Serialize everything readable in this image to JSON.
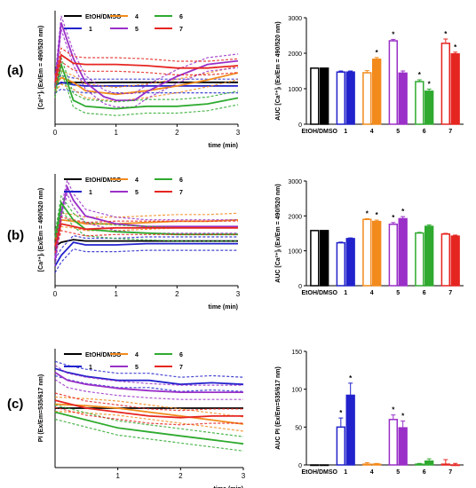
{
  "panel_labels": [
    "(a)",
    "(b)",
    "(c)"
  ],
  "colors": {
    "EtOH/DMSO": "#000000",
    "1": "#2222cc",
    "4": "#f28a1c",
    "5": "#9a30c8",
    "6": "#2faa2f",
    "7": "#e52520"
  },
  "legend": [
    {
      "label": "EtOH/DMSO",
      "key": "EtOH/DMSO"
    },
    {
      "label": "4",
      "key": "4"
    },
    {
      "label": "6",
      "key": "6"
    },
    {
      "label": "1",
      "key": "1"
    },
    {
      "label": "5",
      "key": "5"
    },
    {
      "label": "7",
      "key": "7"
    }
  ],
  "chart_data": [
    {
      "panel": "(a)",
      "type": "line",
      "xlabel": "time (min)",
      "ylabel": "[Ca²⁺]ᵢ (Ex/Em = 490/520 nm)",
      "xlim": [
        0,
        3
      ],
      "x_ticks": [
        "0",
        "1",
        "2",
        "3"
      ],
      "y_ticks": [],
      "series": [
        {
          "name": "EtOH/DMSO",
          "x": [
            0,
            0.1,
            0.3,
            0.5,
            1,
            1.5,
            2,
            2.5,
            3
          ],
          "y": [
            490,
            495,
            500,
            498,
            500,
            500,
            500,
            500,
            500
          ]
        },
        {
          "name": "1",
          "x": [
            0,
            0.1,
            0.3,
            0.5,
            1,
            1.5,
            2,
            2.5,
            3
          ],
          "y": [
            470,
            500,
            480,
            470,
            470,
            470,
            470,
            470,
            470
          ]
        },
        {
          "name": "4",
          "x": [
            0,
            0.1,
            0.3,
            0.5,
            1,
            1.5,
            2,
            2.5,
            3
          ],
          "y": [
            480,
            540,
            500,
            430,
            400,
            430,
            470,
            520,
            580
          ]
        },
        {
          "name": "5",
          "x": [
            0,
            0.1,
            0.3,
            0.5,
            0.8,
            1,
            1.3,
            1.5,
            2,
            2.5,
            3
          ],
          "y": [
            480,
            1000,
            700,
            500,
            380,
            350,
            350,
            420,
            550,
            650,
            680
          ]
        },
        {
          "name": "6",
          "x": [
            0,
            0.1,
            0.3,
            0.5,
            1,
            1.5,
            2,
            2.5,
            3
          ],
          "y": [
            430,
            650,
            350,
            300,
            280,
            300,
            300,
            320,
            370
          ]
        },
        {
          "name": "7",
          "x": [
            0,
            0.1,
            0.3,
            0.5,
            1,
            1.5,
            2,
            2.5,
            3
          ],
          "y": [
            500,
            730,
            660,
            650,
            650,
            640,
            620,
            620,
            640
          ]
        }
      ]
    },
    {
      "panel": "(a)",
      "type": "bar",
      "xlabel": "",
      "ylabel": "AUC [Ca²⁺]ᵢ (Ex/Em = 490/520 nm)",
      "ylim": [
        0,
        3000
      ],
      "y_ticks": [
        "0",
        "1000",
        "2000",
        "3000"
      ],
      "categories": [
        "EtOH/DMSO",
        "1",
        "4",
        "5",
        "6",
        "7"
      ],
      "bars": [
        {
          "group": "EtOH/DMSO",
          "series": "EtOH",
          "value": 1580,
          "err": 0,
          "fill": false,
          "sig": false
        },
        {
          "group": "EtOH/DMSO",
          "series": "DMSO",
          "value": 1580,
          "err": 0,
          "fill": true,
          "sig": false
        },
        {
          "group": "1",
          "series": "EtOH",
          "value": 1470,
          "err": 30,
          "fill": false,
          "sig": false
        },
        {
          "group": "1",
          "series": "DMSO",
          "value": 1470,
          "err": 30,
          "fill": true,
          "sig": false
        },
        {
          "group": "4",
          "series": "EtOH",
          "value": 1450,
          "err": 60,
          "fill": false,
          "sig": false
        },
        {
          "group": "4",
          "series": "DMSO",
          "value": 1830,
          "err": 50,
          "fill": true,
          "sig": true
        },
        {
          "group": "5",
          "series": "EtOH",
          "value": 2350,
          "err": 40,
          "fill": false,
          "sig": true
        },
        {
          "group": "5",
          "series": "DMSO",
          "value": 1440,
          "err": 60,
          "fill": true,
          "sig": false
        },
        {
          "group": "6",
          "series": "EtOH",
          "value": 1200,
          "err": 50,
          "fill": false,
          "sig": true
        },
        {
          "group": "6",
          "series": "DMSO",
          "value": 930,
          "err": 60,
          "fill": true,
          "sig": true
        },
        {
          "group": "7",
          "series": "EtOH",
          "value": 2280,
          "err": 120,
          "fill": false,
          "sig": true
        },
        {
          "group": "7",
          "series": "DMSO",
          "value": 1980,
          "err": 50,
          "fill": true,
          "sig": true
        }
      ]
    },
    {
      "panel": "(b)",
      "type": "line",
      "xlabel": "time (min)",
      "ylabel": "[Ca²⁺]ᵢ (Ex/Em = 490/520 nm)",
      "xlim": [
        0,
        3
      ],
      "x_ticks": [
        "0",
        "1",
        "2",
        "3"
      ],
      "y_ticks": [],
      "series": [
        {
          "name": "EtOH/DMSO",
          "x": [
            0,
            0.1,
            0.3,
            0.5,
            1,
            1.5,
            2,
            2.5,
            3
          ],
          "y": [
            450,
            480,
            500,
            490,
            490,
            490,
            490,
            490,
            490
          ]
        },
        {
          "name": "1",
          "x": [
            0,
            0.1,
            0.3,
            0.5,
            1,
            1.5,
            2,
            2.5,
            3
          ],
          "y": [
            300,
            380,
            480,
            460,
            460,
            470,
            470,
            470,
            470
          ]
        },
        {
          "name": "4",
          "x": [
            0,
            0.1,
            0.3,
            0.5,
            1,
            1.5,
            2,
            2.5,
            3
          ],
          "y": [
            450,
            650,
            640,
            620,
            620,
            630,
            640,
            640,
            650
          ]
        },
        {
          "name": "5",
          "x": [
            0,
            0.1,
            0.2,
            0.3,
            0.5,
            1,
            1.5,
            2,
            2.5,
            3
          ],
          "y": [
            350,
            700,
            900,
            800,
            680,
            620,
            600,
            600,
            600,
            600
          ]
        },
        {
          "name": "6",
          "x": [
            0,
            0.1,
            0.3,
            0.5,
            1,
            1.5,
            2,
            2.5,
            3
          ],
          "y": [
            500,
            780,
            650,
            580,
            560,
            550,
            540,
            540,
            540
          ]
        },
        {
          "name": "7",
          "x": [
            0,
            0.1,
            0.3,
            0.5,
            1,
            1.5,
            2,
            2.5,
            3
          ],
          "y": [
            450,
            620,
            600,
            580,
            590,
            590,
            590,
            590,
            590
          ]
        }
      ]
    },
    {
      "panel": "(b)",
      "type": "bar",
      "xlabel": "",
      "ylabel": "AUC [Ca²⁺]ᵢ (Ex/Em = 490/520 nm)",
      "ylim": [
        0,
        3000
      ],
      "y_ticks": [
        "0",
        "1000",
        "2000",
        "3000"
      ],
      "categories": [
        "EtOH/DMSO",
        "1",
        "4",
        "5",
        "6",
        "7"
      ],
      "bars": [
        {
          "group": "EtOH/DMSO",
          "series": "EtOH",
          "value": 1580,
          "err": 0,
          "fill": false,
          "sig": false
        },
        {
          "group": "EtOH/DMSO",
          "series": "DMSO",
          "value": 1580,
          "err": 0,
          "fill": true,
          "sig": false
        },
        {
          "group": "1",
          "series": "EtOH",
          "value": 1230,
          "err": 20,
          "fill": false,
          "sig": false
        },
        {
          "group": "1",
          "series": "DMSO",
          "value": 1350,
          "err": 20,
          "fill": true,
          "sig": false
        },
        {
          "group": "4",
          "series": "EtOH",
          "value": 1900,
          "err": 20,
          "fill": false,
          "sig": true
        },
        {
          "group": "4",
          "series": "DMSO",
          "value": 1840,
          "err": 40,
          "fill": true,
          "sig": true
        },
        {
          "group": "5",
          "series": "EtOH",
          "value": 1760,
          "err": 50,
          "fill": false,
          "sig": true
        },
        {
          "group": "5",
          "series": "DMSO",
          "value": 1920,
          "err": 60,
          "fill": true,
          "sig": true
        },
        {
          "group": "6",
          "series": "EtOH",
          "value": 1510,
          "err": 20,
          "fill": false,
          "sig": false
        },
        {
          "group": "6",
          "series": "DMSO",
          "value": 1700,
          "err": 40,
          "fill": true,
          "sig": false
        },
        {
          "group": "7",
          "series": "EtOH",
          "value": 1480,
          "err": 20,
          "fill": false,
          "sig": false
        },
        {
          "group": "7",
          "series": "DMSO",
          "value": 1420,
          "err": 30,
          "fill": true,
          "sig": false
        }
      ]
    },
    {
      "panel": "(c)",
      "type": "line",
      "xlabel": "time (min)",
      "ylabel": "PI (Ex/Em=535/617 nm)",
      "xlim": [
        0,
        3
      ],
      "x_ticks": [
        "1",
        "2",
        "3"
      ],
      "y_ticks": [],
      "series": [
        {
          "name": "EtOH/DMSO",
          "x": [
            0,
            0.5,
            1,
            1.5,
            2,
            2.5,
            3
          ],
          "y": [
            0,
            0,
            0,
            0,
            0,
            0,
            0
          ]
        },
        {
          "name": "1",
          "x": [
            0,
            0.2,
            0.5,
            1,
            1.5,
            2,
            2.5,
            3
          ],
          "y": [
            50,
            45,
            40,
            35,
            35,
            30,
            32,
            30
          ]
        },
        {
          "name": "4",
          "x": [
            0,
            0.5,
            1,
            1.5,
            2,
            2.5,
            3
          ],
          "y": [
            5,
            3,
            0,
            -5,
            -10,
            -15,
            -20
          ]
        },
        {
          "name": "5",
          "x": [
            0,
            0.2,
            0.5,
            1,
            1.5,
            2,
            2.5,
            3
          ],
          "y": [
            45,
            35,
            30,
            25,
            22,
            20,
            20,
            20
          ]
        },
        {
          "name": "6",
          "x": [
            0,
            0.5,
            1,
            1.5,
            2,
            2.5,
            3
          ],
          "y": [
            -5,
            -15,
            -25,
            -30,
            -35,
            -40,
            -45
          ]
        },
        {
          "name": "7",
          "x": [
            0,
            0.5,
            1,
            1.5,
            2,
            2.5,
            3
          ],
          "y": [
            10,
            0,
            -5,
            -10,
            -12,
            -10,
            -10
          ]
        }
      ]
    },
    {
      "panel": "(c)",
      "type": "bar",
      "xlabel": "",
      "ylabel": "AUC PI (Ex/Em=535/617 nm)",
      "ylim": [
        0,
        150
      ],
      "y_ticks": [
        "0",
        "50",
        "100",
        "150"
      ],
      "categories": [
        "EtOH/DMSO",
        "1",
        "4",
        "5",
        "6",
        "7"
      ],
      "bars": [
        {
          "group": "EtOH/DMSO",
          "series": "EtOH",
          "value": 0,
          "err": 0,
          "fill": false,
          "sig": false
        },
        {
          "group": "EtOH/DMSO",
          "series": "DMSO",
          "value": 0,
          "err": 0,
          "fill": true,
          "sig": false
        },
        {
          "group": "1",
          "series": "EtOH",
          "value": 50,
          "err": 12,
          "fill": false,
          "sig": true
        },
        {
          "group": "1",
          "series": "DMSO",
          "value": 92,
          "err": 16,
          "fill": true,
          "sig": true
        },
        {
          "group": "4",
          "series": "EtOH",
          "value": 1,
          "err": 2,
          "fill": false,
          "sig": false
        },
        {
          "group": "4",
          "series": "DMSO",
          "value": 1,
          "err": 1,
          "fill": true,
          "sig": false
        },
        {
          "group": "5",
          "series": "EtOH",
          "value": 60,
          "err": 6,
          "fill": false,
          "sig": true
        },
        {
          "group": "5",
          "series": "DMSO",
          "value": 49,
          "err": 9,
          "fill": true,
          "sig": true
        },
        {
          "group": "6",
          "series": "EtOH",
          "value": 1,
          "err": 1,
          "fill": false,
          "sig": false
        },
        {
          "group": "6",
          "series": "DMSO",
          "value": 5,
          "err": 3,
          "fill": true,
          "sig": false
        },
        {
          "group": "7",
          "series": "EtOH",
          "value": 1,
          "err": 6,
          "fill": false,
          "sig": false
        },
        {
          "group": "7",
          "series": "DMSO",
          "value": 0,
          "err": 2,
          "fill": true,
          "sig": false
        }
      ]
    }
  ]
}
